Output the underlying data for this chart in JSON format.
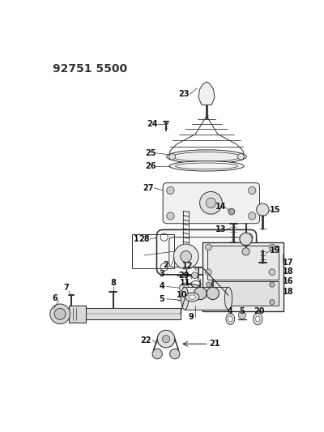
{
  "title": "92751 5500",
  "bg_color": "#ffffff",
  "line_color": "#333333",
  "title_fontsize": 10,
  "fig_width": 4.0,
  "fig_height": 5.33,
  "dpi": 100,
  "label_fontsize": 7,
  "label_color": "#111111"
}
